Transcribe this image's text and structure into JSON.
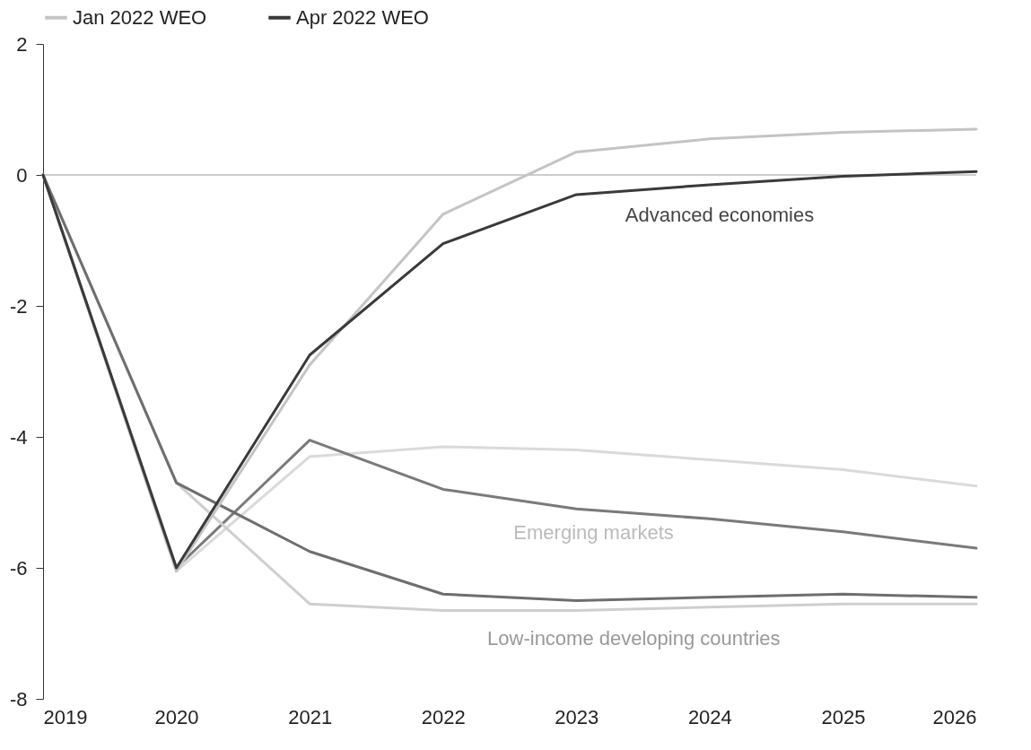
{
  "chart_data": {
    "type": "line",
    "x": [
      2019,
      2020,
      2021,
      2022,
      2023,
      2024,
      2025,
      2026
    ],
    "xlim": [
      2019,
      2026
    ],
    "xticks": [
      2019,
      2020,
      2021,
      2022,
      2023,
      2024,
      2025,
      2026
    ],
    "ylim": [
      -8,
      2
    ],
    "yticks": [
      -8,
      -6,
      -4,
      -2,
      0,
      2
    ],
    "grid": false,
    "legend": "top",
    "marker": "none",
    "line_style": "solid",
    "series": [
      {
        "name": "Jan 2022 WEO",
        "color": "#c4c4c4",
        "values": [
          0,
          -6.05,
          -2.9,
          -0.6,
          0.35,
          0.55,
          0.65,
          0.7
        ]
      },
      {
        "name": "Apr 2022 WEO",
        "color": "#3a3a3a",
        "values": [
          0,
          -6.0,
          -2.75,
          -1.05,
          -0.3,
          -0.15,
          -0.02,
          0.05
        ]
      },
      {
        "color": "#dadada",
        "values": [
          0,
          -6.05,
          -4.3,
          -4.15,
          -4.2,
          -4.35,
          -4.5,
          -4.75
        ]
      },
      {
        "color": "#7a7a7a",
        "values": [
          0,
          -6.0,
          -4.05,
          -4.8,
          -5.1,
          -5.25,
          -5.45,
          -5.7
        ]
      },
      {
        "color": "#cfcfcf",
        "values": [
          0,
          -4.7,
          -6.55,
          -6.65,
          -6.65,
          -6.6,
          -6.55,
          -6.55
        ]
      },
      {
        "color": "#6e6e6e",
        "values": [
          0,
          -4.7,
          -5.75,
          -6.4,
          -6.5,
          -6.45,
          -6.4,
          -6.45
        ]
      }
    ],
    "ref_lines": [
      {
        "axis": "y",
        "value": 0,
        "color": "#bdbdbd"
      }
    ],
    "annotations": [
      "Advanced economies",
      "Emerging markets",
      "Low-income developing countries"
    ]
  }
}
